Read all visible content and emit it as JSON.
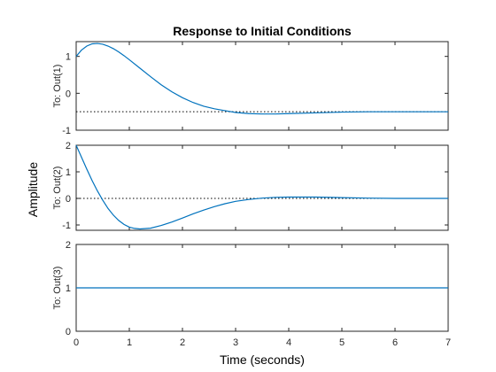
{
  "chart_data": {
    "type": "line",
    "title": "Response to Initial Conditions",
    "xlabel": "Time (seconds)",
    "ylabel": "Amplitude",
    "xlim": [
      0,
      7
    ],
    "xticks": [
      "0",
      "1",
      "2",
      "3",
      "4",
      "5",
      "6",
      "7"
    ],
    "line_color": "#0072BD",
    "subplots": [
      {
        "ylabel": "To: Out(1)",
        "ylim": [
          -1,
          1.4
        ],
        "yticks": [
          "-1",
          "0",
          "1"
        ],
        "steady_state": -0.5,
        "x": [
          0,
          0.1,
          0.2,
          0.3,
          0.4,
          0.5,
          0.6,
          0.7,
          0.8,
          0.9,
          1.0,
          1.2,
          1.4,
          1.6,
          1.8,
          2.0,
          2.2,
          2.4,
          2.6,
          2.8,
          3.0,
          3.25,
          3.5,
          3.75,
          4.0,
          4.5,
          5.0,
          5.5,
          6.0,
          6.5,
          7.0
        ],
        "y": [
          1.0,
          1.17,
          1.28,
          1.34,
          1.35,
          1.33,
          1.28,
          1.21,
          1.12,
          1.02,
          0.91,
          0.68,
          0.45,
          0.23,
          0.04,
          -0.12,
          -0.25,
          -0.35,
          -0.42,
          -0.47,
          -0.52,
          -0.55,
          -0.56,
          -0.56,
          -0.55,
          -0.53,
          -0.51,
          -0.5,
          -0.5,
          -0.5,
          -0.5
        ]
      },
      {
        "ylabel": "To: Out(2)",
        "ylim": [
          -1.2,
          2
        ],
        "yticks": [
          "-1",
          "0",
          "1",
          "2"
        ],
        "steady_state": 0,
        "x": [
          0,
          0.1,
          0.2,
          0.3,
          0.4,
          0.5,
          0.6,
          0.7,
          0.8,
          0.9,
          1.0,
          1.1,
          1.2,
          1.4,
          1.6,
          1.8,
          2.0,
          2.2,
          2.4,
          2.6,
          2.8,
          3.0,
          3.25,
          3.5,
          3.75,
          4.0,
          4.5,
          5.0,
          5.5,
          6.0,
          6.5,
          7.0
        ],
        "y": [
          2.0,
          1.55,
          1.1,
          0.67,
          0.28,
          -0.07,
          -0.38,
          -0.63,
          -0.83,
          -0.98,
          -1.08,
          -1.13,
          -1.15,
          -1.12,
          -1.02,
          -0.89,
          -0.74,
          -0.58,
          -0.44,
          -0.31,
          -0.2,
          -0.11,
          -0.04,
          0.01,
          0.04,
          0.05,
          0.05,
          0.03,
          0.01,
          0.0,
          0.0,
          0.0
        ]
      },
      {
        "ylabel": "To: Out(3)",
        "ylim": [
          0,
          2
        ],
        "yticks": [
          "0",
          "1",
          "2"
        ],
        "steady_state": 1,
        "x": [
          0,
          7
        ],
        "y": [
          1,
          1
        ]
      }
    ]
  }
}
